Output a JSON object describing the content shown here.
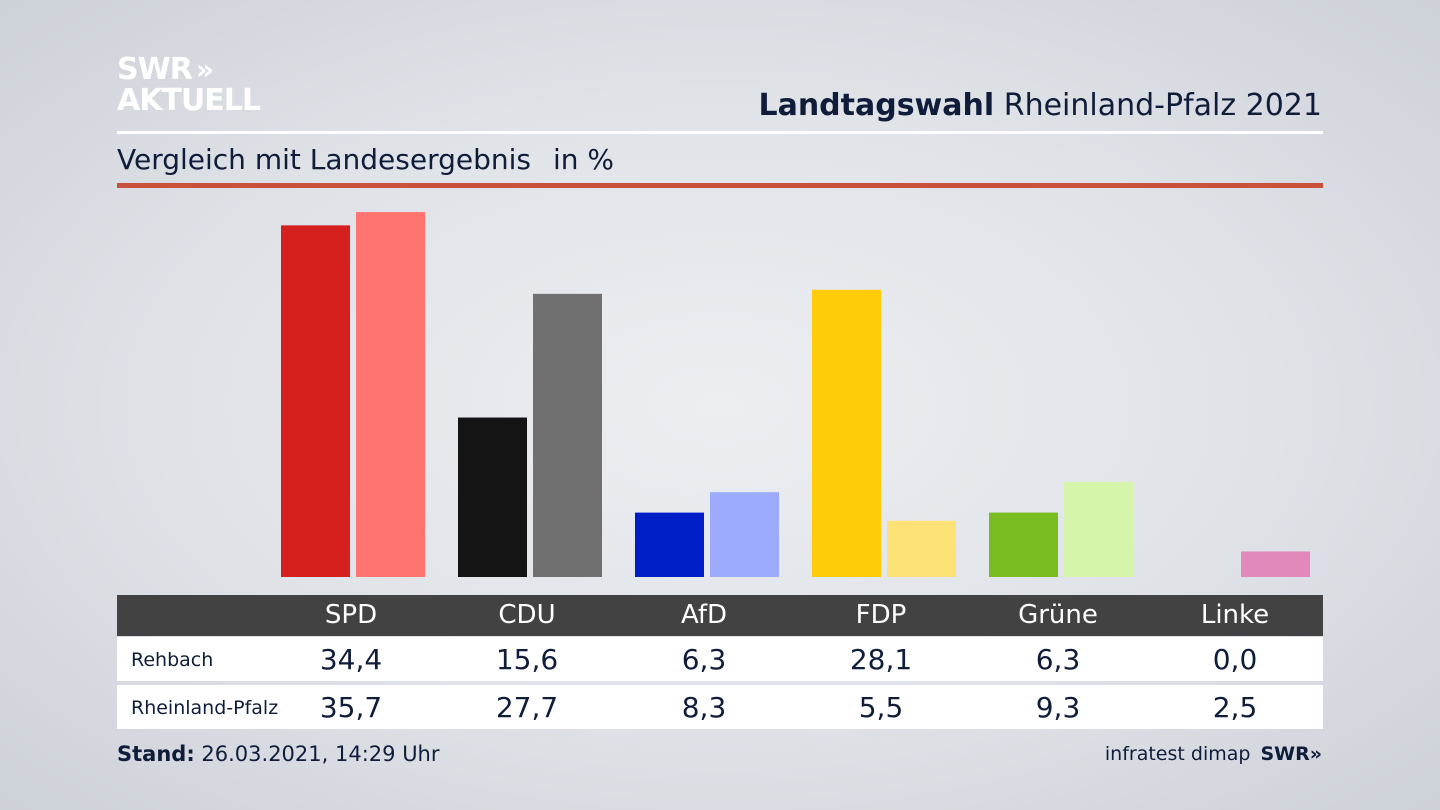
{
  "logo": {
    "line1": "SWR",
    "line2": "AKTUELL",
    "chevrons": "»"
  },
  "header": {
    "title_bold": "Landtagswahl",
    "title_rest": "Rheinland-Pfalz 2021"
  },
  "subtitle": {
    "text": "Vergleich mit Landesergebnis",
    "unit": "in %"
  },
  "colors": {
    "accent_rule": "#c9503a",
    "table_header_bg": "#434242"
  },
  "chart_data": {
    "type": "bar",
    "categories": [
      "SPD",
      "CDU",
      "AfD",
      "FDP",
      "Grüne",
      "Linke"
    ],
    "series": [
      {
        "name": "Rehbach",
        "values": [
          34.4,
          15.6,
          6.3,
          28.1,
          6.3,
          0.0
        ],
        "colors": [
          "#d62020",
          "#141414",
          "#001ec8",
          "#ffcc0a",
          "#79bc22",
          "#d97aa8"
        ]
      },
      {
        "name": "Rheinland-Pfalz",
        "values": [
          35.7,
          27.7,
          8.3,
          5.5,
          9.3,
          2.5
        ],
        "colors": [
          "#ff7470",
          "#717070",
          "#9dabff",
          "#fde277",
          "#d5f5ab",
          "#e089ba"
        ]
      }
    ],
    "ylim": [
      0,
      36
    ],
    "grid": false,
    "legend": "table-below"
  },
  "table": {
    "headers": [
      "SPD",
      "CDU",
      "AfD",
      "FDP",
      "Grüne",
      "Linke"
    ],
    "rows": [
      {
        "label": "Rehbach",
        "values": [
          "34,4",
          "15,6",
          "6,3",
          "28,1",
          "6,3",
          "0,0"
        ]
      },
      {
        "label": "Rheinland-Pfalz",
        "values": [
          "35,7",
          "27,7",
          "8,3",
          "5,5",
          "9,3",
          "2,5"
        ]
      }
    ]
  },
  "footer": {
    "stand_label": "Stand:",
    "stand_value": "26.03.2021, 14:29 Uhr"
  },
  "source": {
    "text": "infratest dimap",
    "brand": "SWR",
    "chevrons": "»"
  }
}
